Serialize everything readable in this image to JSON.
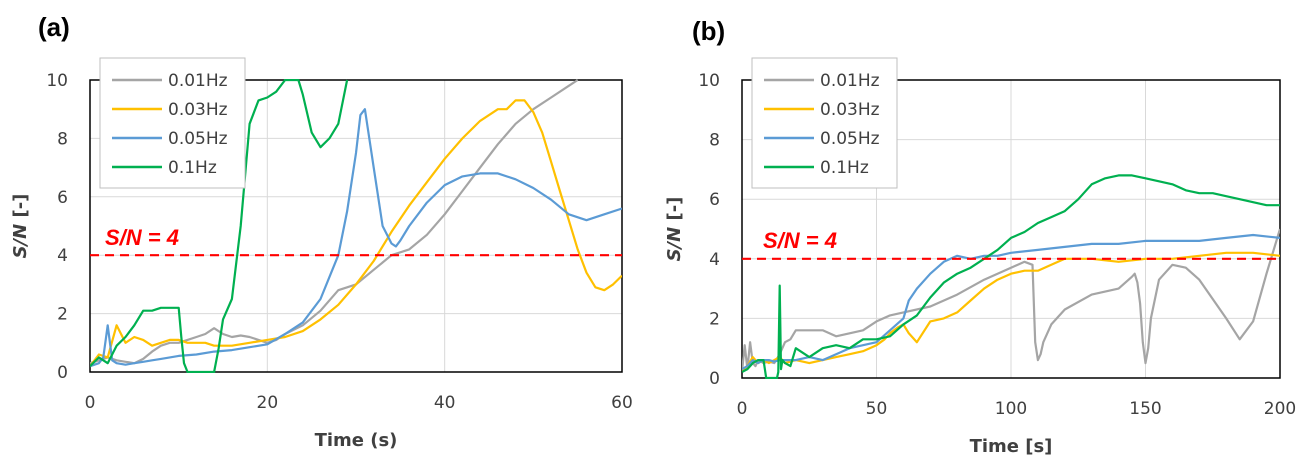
{
  "chart_data": [
    {
      "panel_label": "(a)",
      "type": "line",
      "xlabel": "Time (s)",
      "ylabel": "S/N [-]",
      "xlim": [
        0,
        60
      ],
      "ylim": [
        0,
        10
      ],
      "xticks": [
        "0",
        "20",
        "40",
        "60"
      ],
      "yticks": [
        "0",
        "2",
        "4",
        "6",
        "8",
        "10"
      ],
      "grid": true,
      "legend_position": "top-left",
      "threshold": {
        "y": 4,
        "label": "S/N = 4",
        "color": "#ff0000",
        "style": "dashed"
      },
      "series": [
        {
          "name": "0.01Hz",
          "color": "#a5a5a5",
          "x": [
            0,
            1,
            2,
            3,
            4,
            5,
            6,
            7,
            8,
            9,
            10,
            11,
            12,
            13,
            14,
            15,
            16,
            17,
            18,
            19,
            20,
            21,
            22,
            24,
            26,
            28,
            30,
            32,
            34,
            36,
            38,
            40,
            42,
            44,
            46,
            48,
            50,
            52,
            54,
            55
          ],
          "y": [
            0.3,
            0.4,
            0.5,
            0.4,
            0.35,
            0.3,
            0.45,
            0.7,
            0.9,
            1.0,
            1.0,
            1.1,
            1.2,
            1.3,
            1.5,
            1.3,
            1.2,
            1.25,
            1.2,
            1.1,
            1.0,
            1.1,
            1.3,
            1.6,
            2.1,
            2.8,
            3.0,
            3.5,
            4.0,
            4.2,
            4.7,
            5.4,
            6.2,
            7.0,
            7.8,
            8.5,
            9.0,
            9.4,
            9.8,
            10.0
          ]
        },
        {
          "name": "0.03Hz",
          "color": "#ffc000",
          "x": [
            0,
            1,
            2,
            3,
            4,
            5,
            6,
            7,
            8,
            9,
            10,
            11,
            12,
            13,
            14,
            16,
            18,
            20,
            22,
            24,
            26,
            28,
            30,
            32,
            34,
            36,
            38,
            40,
            42,
            44,
            46,
            47,
            48,
            49,
            50,
            51,
            52,
            53,
            54,
            55,
            56,
            57,
            58,
            59,
            60
          ],
          "y": [
            0.2,
            0.6,
            0.5,
            1.6,
            1.0,
            1.2,
            1.1,
            0.9,
            1.0,
            1.1,
            1.1,
            1.0,
            1.0,
            1.0,
            0.9,
            0.9,
            1.0,
            1.1,
            1.2,
            1.4,
            1.8,
            2.3,
            3.0,
            3.8,
            4.8,
            5.7,
            6.5,
            7.3,
            8.0,
            8.6,
            9.0,
            9.0,
            9.3,
            9.3,
            8.9,
            8.2,
            7.2,
            6.2,
            5.2,
            4.2,
            3.4,
            2.9,
            2.8,
            3.0,
            3.3
          ]
        },
        {
          "name": "0.05Hz",
          "color": "#5b9bd5",
          "x": [
            0,
            1,
            1.5,
            2,
            2.5,
            3,
            4,
            5,
            6,
            7,
            8,
            9,
            10,
            12,
            14,
            16,
            18,
            20,
            22,
            24,
            26,
            28,
            29,
            30,
            30.5,
            31,
            32,
            33,
            34,
            34.5,
            35,
            36,
            38,
            40,
            42,
            44,
            46,
            48,
            50,
            52,
            54,
            56,
            58,
            60
          ],
          "y": [
            0.2,
            0.3,
            0.5,
            1.6,
            0.4,
            0.3,
            0.25,
            0.3,
            0.35,
            0.4,
            0.45,
            0.5,
            0.55,
            0.6,
            0.7,
            0.75,
            0.85,
            0.95,
            1.3,
            1.7,
            2.5,
            4.0,
            5.5,
            7.5,
            8.8,
            9.0,
            7.0,
            5.0,
            4.4,
            4.3,
            4.5,
            5.0,
            5.8,
            6.4,
            6.7,
            6.8,
            6.8,
            6.6,
            6.3,
            5.9,
            5.4,
            5.2,
            5.4,
            5.6
          ]
        },
        {
          "name": "0.1Hz",
          "color": "#00b050",
          "x": [
            0,
            1,
            2,
            3,
            4,
            5,
            6,
            7,
            8,
            9,
            10,
            10.3,
            10.6,
            11,
            12,
            13,
            14,
            14.5,
            15,
            16,
            17,
            18,
            19,
            20,
            21,
            22,
            22.5,
            23,
            23.5,
            24,
            25,
            26,
            27,
            28,
            29
          ],
          "y": [
            0.2,
            0.5,
            0.3,
            0.9,
            1.2,
            1.6,
            2.1,
            2.1,
            2.2,
            2.2,
            2.2,
            1.2,
            0.3,
            0.0,
            0.0,
            0.0,
            0.0,
            0.8,
            1.8,
            2.5,
            5.0,
            8.5,
            9.3,
            9.4,
            9.6,
            10.0,
            10.0,
            10.0,
            10.0,
            9.5,
            8.2,
            7.7,
            8.0,
            8.5,
            10.0
          ]
        }
      ]
    },
    {
      "panel_label": "(b)",
      "type": "line",
      "xlabel": "Time [s]",
      "ylabel": "S/N [-]",
      "xlim": [
        0,
        200
      ],
      "ylim": [
        0,
        10
      ],
      "xticks": [
        "0",
        "50",
        "100",
        "150",
        "200"
      ],
      "yticks": [
        "0",
        "2",
        "4",
        "6",
        "8",
        "10"
      ],
      "grid": true,
      "legend_position": "top-left",
      "threshold": {
        "y": 4,
        "label": "S/N = 4",
        "color": "#ff0000",
        "style": "dashed"
      },
      "series": [
        {
          "name": "0.01Hz",
          "color": "#a5a5a5",
          "x": [
            0,
            1,
            2,
            3,
            4,
            5,
            6,
            8,
            10,
            12,
            14,
            16,
            18,
            20,
            22,
            25,
            30,
            35,
            40,
            45,
            50,
            55,
            60,
            70,
            80,
            90,
            100,
            105,
            108,
            109,
            110,
            111,
            112,
            115,
            120,
            130,
            140,
            145,
            146,
            147,
            148,
            149,
            150,
            151,
            152,
            155,
            160,
            165,
            170,
            180,
            185,
            190,
            195,
            200
          ],
          "y": [
            0.2,
            1.1,
            0.3,
            1.2,
            0.5,
            0.4,
            0.6,
            0.5,
            0.55,
            0.5,
            0.8,
            1.2,
            1.3,
            1.6,
            1.6,
            1.6,
            1.6,
            1.4,
            1.5,
            1.6,
            1.9,
            2.1,
            2.2,
            2.4,
            2.8,
            3.3,
            3.7,
            3.9,
            3.8,
            1.2,
            0.6,
            0.8,
            1.2,
            1.8,
            2.3,
            2.8,
            3.0,
            3.4,
            3.5,
            3.2,
            2.5,
            1.2,
            0.5,
            1.0,
            2.0,
            3.3,
            3.8,
            3.7,
            3.3,
            2.0,
            1.3,
            1.9,
            3.5,
            5.0
          ]
        },
        {
          "name": "0.03Hz",
          "color": "#ffc000",
          "x": [
            0,
            2,
            4,
            6,
            8,
            10,
            12,
            14,
            16,
            20,
            25,
            30,
            35,
            40,
            45,
            50,
            53,
            55,
            58,
            60,
            62,
            65,
            70,
            75,
            80,
            85,
            90,
            95,
            100,
            105,
            110,
            115,
            120,
            130,
            140,
            150,
            160,
            170,
            180,
            190,
            200
          ],
          "y": [
            0.2,
            0.4,
            0.7,
            0.5,
            0.6,
            0.5,
            0.6,
            0.7,
            0.5,
            0.6,
            0.5,
            0.6,
            0.7,
            0.8,
            0.9,
            1.1,
            1.3,
            1.5,
            1.7,
            1.8,
            1.5,
            1.2,
            1.9,
            2.0,
            2.2,
            2.6,
            3.0,
            3.3,
            3.5,
            3.6,
            3.6,
            3.8,
            4.0,
            4.0,
            3.9,
            4.0,
            4.0,
            4.1,
            4.2,
            4.2,
            4.1
          ]
        },
        {
          "name": "0.05Hz",
          "color": "#5b9bd5",
          "x": [
            0,
            2,
            4,
            6,
            8,
            10,
            12,
            14,
            16,
            20,
            25,
            30,
            35,
            40,
            45,
            50,
            55,
            60,
            62,
            65,
            70,
            75,
            80,
            85,
            90,
            95,
            100,
            110,
            120,
            130,
            140,
            150,
            160,
            170,
            180,
            190,
            200
          ],
          "y": [
            0.3,
            0.4,
            0.6,
            0.5,
            0.6,
            0.6,
            0.55,
            0.6,
            0.6,
            0.6,
            0.7,
            0.6,
            0.8,
            1.0,
            1.1,
            1.2,
            1.6,
            2.0,
            2.6,
            3.0,
            3.5,
            3.9,
            4.1,
            4.0,
            4.1,
            4.1,
            4.2,
            4.3,
            4.4,
            4.5,
            4.5,
            4.6,
            4.6,
            4.6,
            4.7,
            4.8,
            4.7
          ]
        },
        {
          "name": "0.1Hz",
          "color": "#00b050",
          "x": [
            0,
            2,
            4,
            6,
            8,
            9,
            10,
            11,
            12,
            13,
            13.5,
            14,
            14.5,
            15,
            16,
            18,
            20,
            25,
            30,
            35,
            40,
            45,
            50,
            55,
            60,
            65,
            70,
            75,
            80,
            85,
            90,
            95,
            100,
            105,
            110,
            115,
            120,
            125,
            130,
            135,
            140,
            145,
            150,
            155,
            160,
            165,
            170,
            175,
            180,
            185,
            190,
            195,
            200
          ],
          "y": [
            0.2,
            0.3,
            0.5,
            0.6,
            0.6,
            0.0,
            0.0,
            0.0,
            0.0,
            0.0,
            0.2,
            3.1,
            0.3,
            0.6,
            0.5,
            0.4,
            1.0,
            0.7,
            1.0,
            1.1,
            1.0,
            1.3,
            1.3,
            1.4,
            1.8,
            2.1,
            2.7,
            3.2,
            3.5,
            3.7,
            4.0,
            4.3,
            4.7,
            4.9,
            5.2,
            5.4,
            5.6,
            6.0,
            6.5,
            6.7,
            6.8,
            6.8,
            6.7,
            6.6,
            6.5,
            6.3,
            6.2,
            6.2,
            6.1,
            6.0,
            5.9,
            5.8,
            5.8
          ]
        }
      ]
    }
  ]
}
